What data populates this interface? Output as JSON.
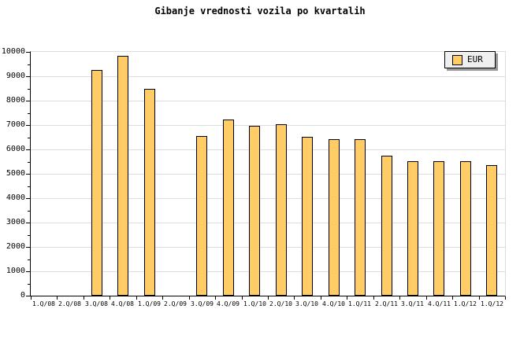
{
  "chart_data": {
    "type": "bar",
    "title": "Gibanje vrednosti vozila po kvartalih",
    "categories": [
      "1.Q/08",
      "2.Q/08",
      "3.Q/08",
      "4.Q/08",
      "1.Q/09",
      "2.Q/09",
      "3.Q/09",
      "4.Q/09",
      "1.Q/10",
      "2.Q/10",
      "3.Q/10",
      "4.Q/10",
      "1.Q/11",
      "2.Q/11",
      "3.Q/11",
      "4.Q/11",
      "1.Q/12",
      "1.Q/12"
    ],
    "series": [
      {
        "name": "EUR",
        "color": "#FFCC66",
        "values": [
          null,
          null,
          9250,
          9840,
          8480,
          null,
          6550,
          7220,
          6970,
          7040,
          6500,
          6430,
          6410,
          5750,
          5510,
          5510,
          5510,
          5350
        ]
      }
    ],
    "xlabel": "",
    "ylabel": "",
    "ylim": [
      0,
      10000
    ],
    "ytick_major": 1000,
    "ytick_minor": 500,
    "grid": "horizontal-major",
    "legend": {
      "position": "top-right",
      "entries": [
        {
          "label": "EUR",
          "color": "#FFCC66"
        }
      ]
    }
  },
  "colors": {
    "background": "#FFFFFF",
    "bar_fill": "#FFCC66",
    "bar_border": "#000000",
    "grid": "#DDDDDD",
    "axis": "#000000",
    "frame": "#DDDDDD",
    "legend_bg": "#EFEFEF",
    "legend_shadow": "#999999",
    "text": "#000000"
  }
}
